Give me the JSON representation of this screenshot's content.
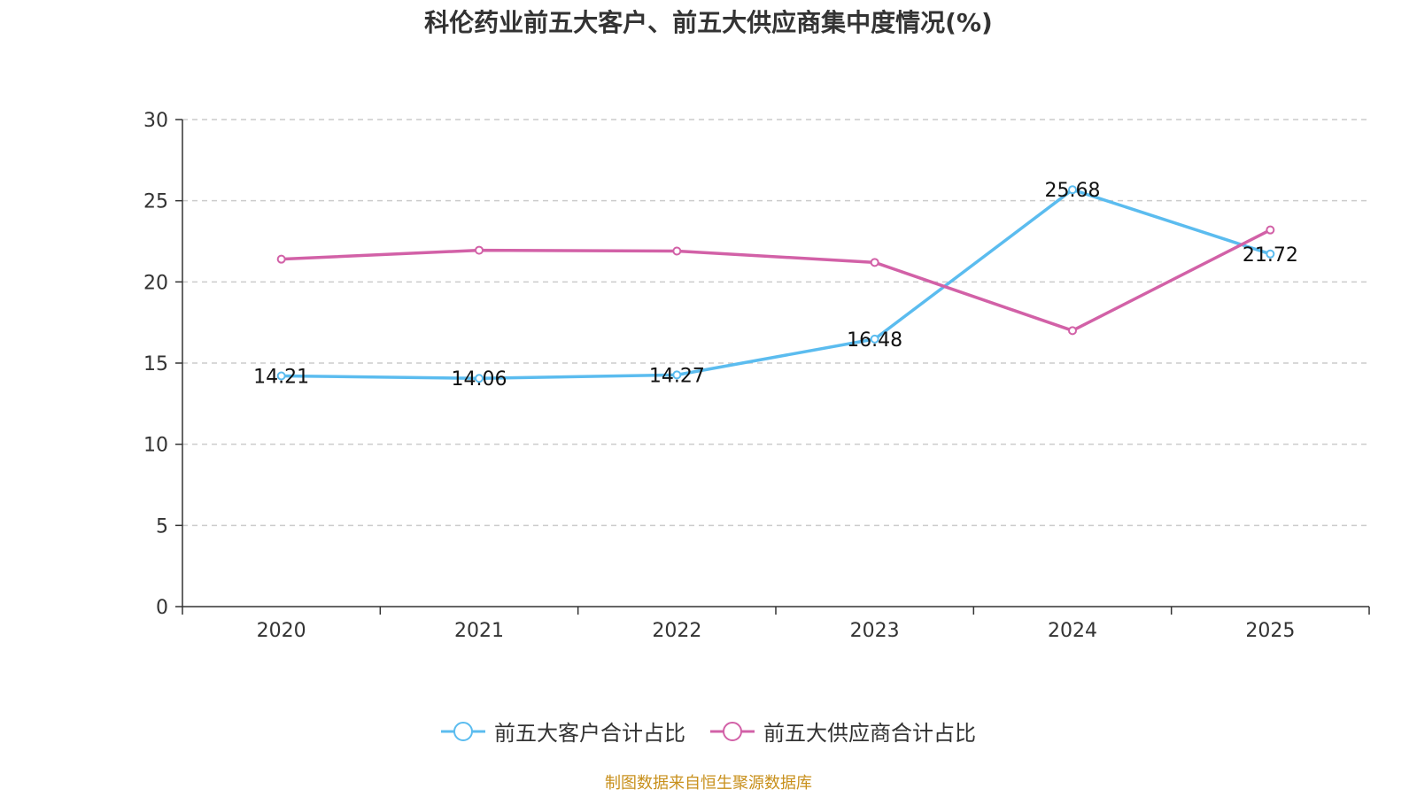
{
  "chart_data": {
    "type": "line",
    "title": "科伦药业前五大客户、前五大供应商集中度情况(%)",
    "categories": [
      "2020",
      "2021",
      "2022",
      "2023",
      "2024",
      "2025"
    ],
    "series": [
      {
        "name": "前五大客户合计占比",
        "color": "#5bbcef",
        "values": [
          14.21,
          14.06,
          14.27,
          16.48,
          25.68,
          21.72
        ],
        "show_labels": true
      },
      {
        "name": "前五大供应商合计占比",
        "color": "#d261a7",
        "values": [
          21.4,
          21.95,
          21.9,
          21.2,
          17.0,
          23.2
        ],
        "show_labels": false
      }
    ],
    "y_ticks": [
      0,
      5,
      10,
      15,
      20,
      25,
      30
    ],
    "ylim": [
      0,
      30
    ],
    "grid": true,
    "legend_position": "bottom-center",
    "xlabel": "",
    "ylabel": ""
  },
  "source_note": "制图数据来自恒生聚源数据库"
}
